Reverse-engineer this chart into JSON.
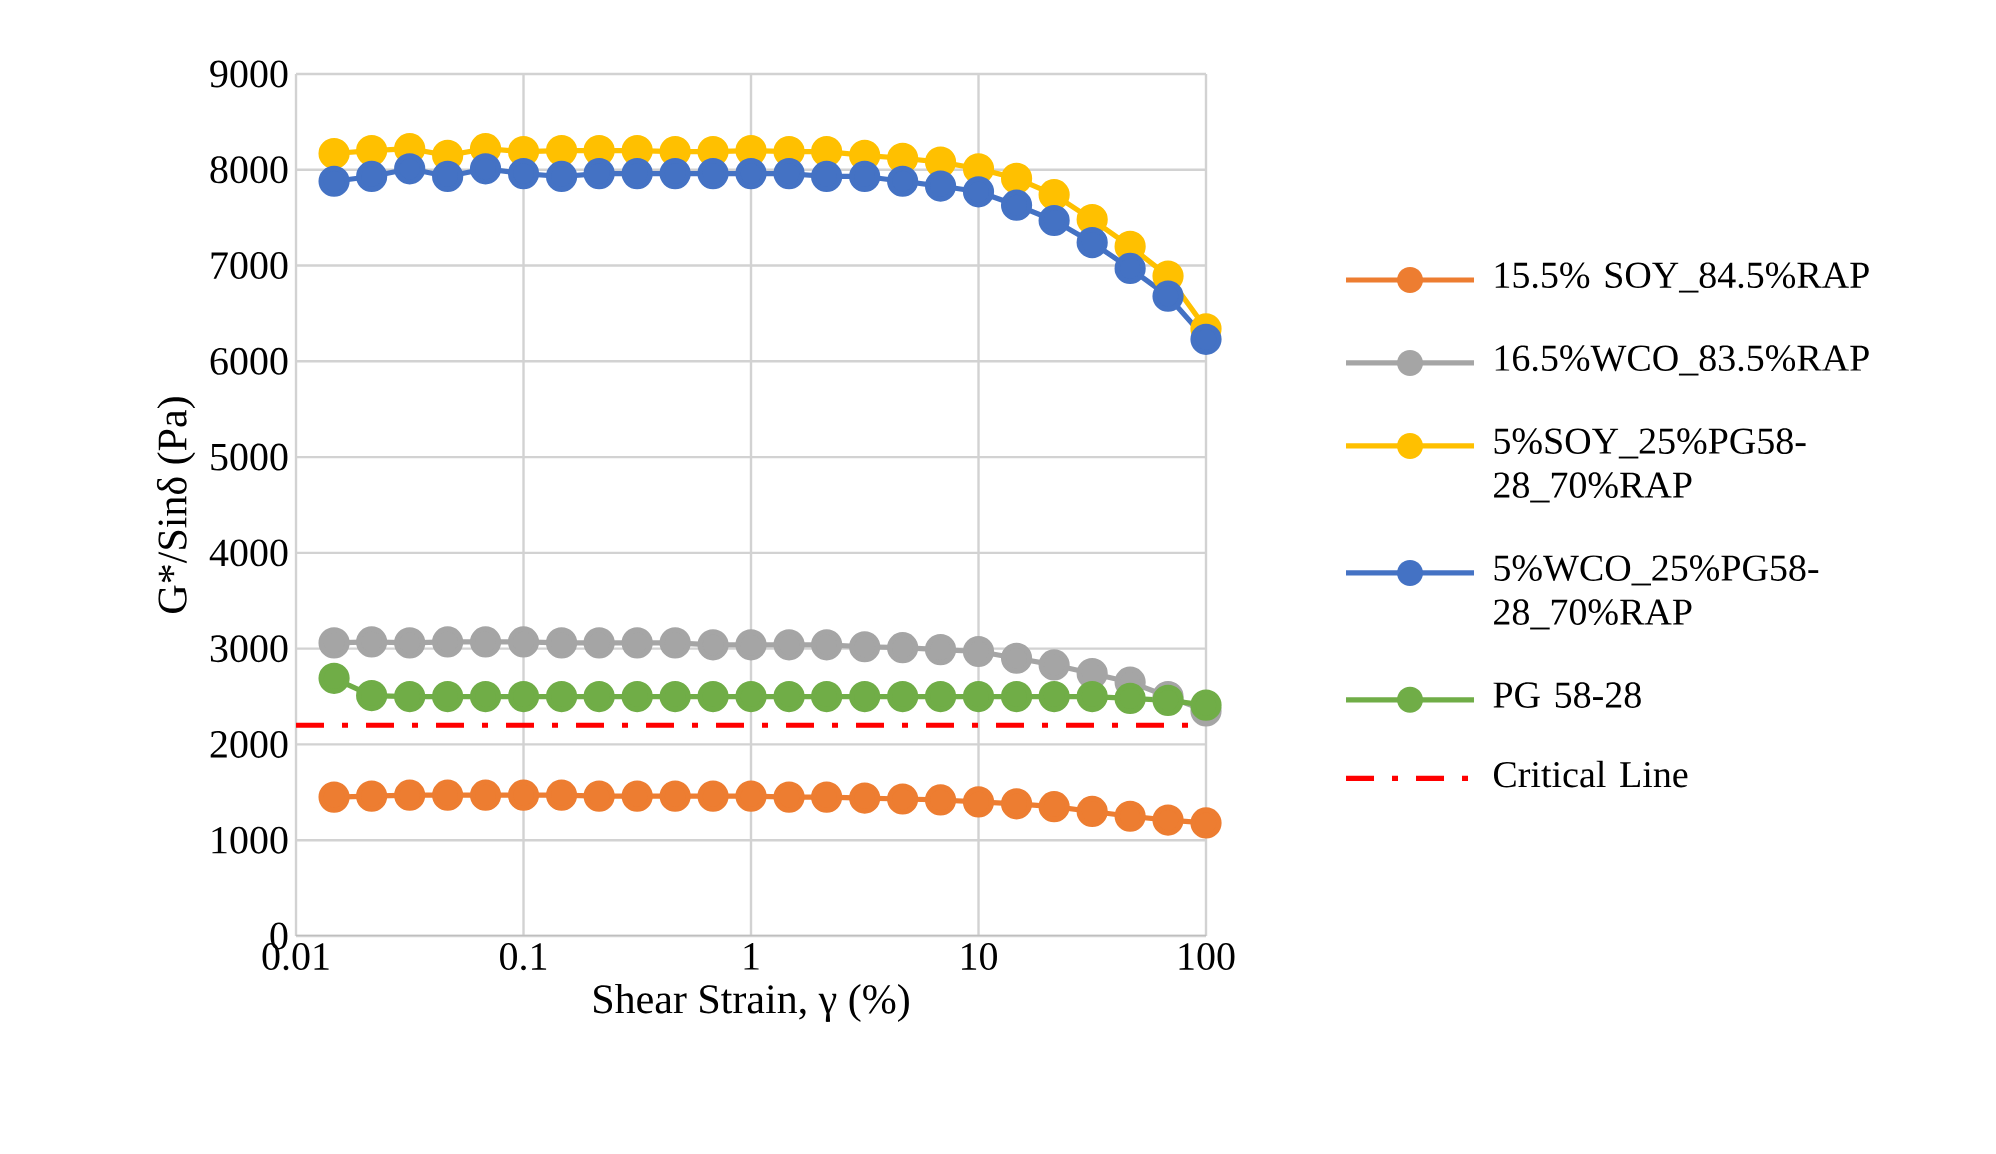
{
  "chart_data": {
    "type": "line",
    "xlabel": "Shear Strain, γ (%)",
    "ylabel": "G*/Sinδ (Pa)",
    "log": "x",
    "xlim": [
      0.01,
      100
    ],
    "xticks": [
      0.01,
      0.1,
      1,
      10,
      100
    ],
    "ylim": [
      0,
      9000
    ],
    "yticks": [
      0,
      1000,
      2000,
      3000,
      4000,
      5000,
      6000,
      7000,
      8000,
      9000
    ],
    "grid": true,
    "legend": "right",
    "marker": "circle",
    "line_style": "solid",
    "x": [
      0.0147,
      0.0215,
      0.0316,
      0.0464,
      0.0681,
      0.1,
      0.147,
      0.215,
      0.316,
      0.464,
      0.681,
      1,
      1.47,
      2.15,
      3.16,
      4.64,
      6.81,
      10,
      14.7,
      21.5,
      31.6,
      46.4,
      68.1,
      100
    ],
    "series": [
      {
        "name": "15.5% SOY_84.5%RAP",
        "color": "#ed7d31",
        "values": [
          1450,
          1460,
          1470,
          1470,
          1470,
          1470,
          1470,
          1460,
          1460,
          1460,
          1460,
          1460,
          1450,
          1450,
          1440,
          1430,
          1420,
          1400,
          1380,
          1350,
          1300,
          1250,
          1210,
          1180
        ]
      },
      {
        "name": "16.5%WCO_83.5%RAP",
        "color": "#a5a5a5",
        "values": [
          3060,
          3070,
          3060,
          3070,
          3070,
          3070,
          3060,
          3060,
          3060,
          3060,
          3040,
          3040,
          3040,
          3040,
          3020,
          3010,
          2990,
          2970,
          2900,
          2830,
          2740,
          2650,
          2500,
          2350
        ]
      },
      {
        "name": "5%SOY_25%PG58-28_70%RAP",
        "color": "#ffc000",
        "values": [
          8170,
          8200,
          8220,
          8150,
          8220,
          8190,
          8200,
          8200,
          8200,
          8190,
          8190,
          8200,
          8190,
          8190,
          8150,
          8120,
          8080,
          8010,
          7910,
          7740,
          7480,
          7200,
          6890,
          6340
        ]
      },
      {
        "name": "5%WCO_25%PG58-28_70%RAP",
        "color": "#4472c4",
        "values": [
          7880,
          7930,
          8010,
          7930,
          8010,
          7960,
          7930,
          7960,
          7960,
          7960,
          7960,
          7960,
          7960,
          7930,
          7930,
          7880,
          7830,
          7770,
          7630,
          7470,
          7240,
          6970,
          6680,
          6230
        ]
      },
      {
        "name": "PG 58-28",
        "color": "#70ad47",
        "values": [
          2690,
          2510,
          2500,
          2500,
          2500,
          2500,
          2500,
          2500,
          2500,
          2500,
          2500,
          2500,
          2500,
          2500,
          2500,
          2500,
          2500,
          2500,
          2500,
          2500,
          2500,
          2480,
          2460,
          2410
        ]
      }
    ],
    "ref_lines": [
      {
        "axis": "y",
        "value": 2200,
        "label": "Critical Line",
        "color": "#ff0000",
        "line_style": "dashdot"
      }
    ]
  }
}
